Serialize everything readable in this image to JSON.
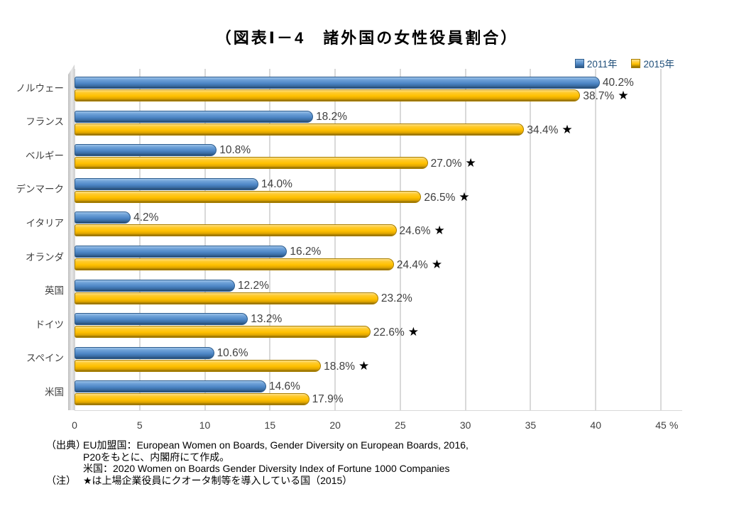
{
  "title": "（図表Ⅰ－4　諸外国の女性役員割合）",
  "chart_data": {
    "type": "bar",
    "orientation": "horizontal",
    "title": "（図表Ⅰ－4　諸外国の女性役員割合）",
    "categories": [
      "ノルウェー",
      "フランス",
      "ベルギー",
      "デンマーク",
      "イタリア",
      "オランダ",
      "英国",
      "ドイツ",
      "スペイン",
      "米国"
    ],
    "series": [
      {
        "name": "2011年",
        "color": "#4E87C6",
        "values": [
          40.2,
          18.2,
          10.8,
          14.0,
          4.2,
          16.2,
          12.2,
          13.2,
          10.6,
          14.6
        ]
      },
      {
        "name": "2015年",
        "color": "#FFC000",
        "values": [
          38.7,
          34.4,
          27.0,
          26.5,
          24.6,
          24.4,
          23.2,
          22.6,
          18.8,
          17.9
        ]
      }
    ],
    "starred_2015": [
      true,
      true,
      true,
      true,
      true,
      true,
      false,
      true,
      true,
      false
    ],
    "star_symbol": "★",
    "xlim": [
      0,
      45
    ],
    "xticks": [
      0,
      5,
      10,
      15,
      20,
      25,
      30,
      35,
      40,
      45
    ],
    "x_unit": "%",
    "grid": true,
    "legend_position": "top-right",
    "value_label_format": "one-decimal-percent"
  },
  "footnotes": {
    "lines": [
      {
        "label": "（出典）",
        "text": "EU加盟国：European Women on Boards, Gender Diversity on European Boards, 2016,"
      },
      {
        "label": "",
        "text": "P20をもとに、内閣府にて作成。"
      },
      {
        "label": "",
        "text": "米国：2020 Women on Boards Gender Diversity Index of Fortune 1000 Companies"
      },
      {
        "label": "（注）",
        "text": "★は上場企業役員にクオータ制等を導入している国（2015）"
      }
    ]
  }
}
